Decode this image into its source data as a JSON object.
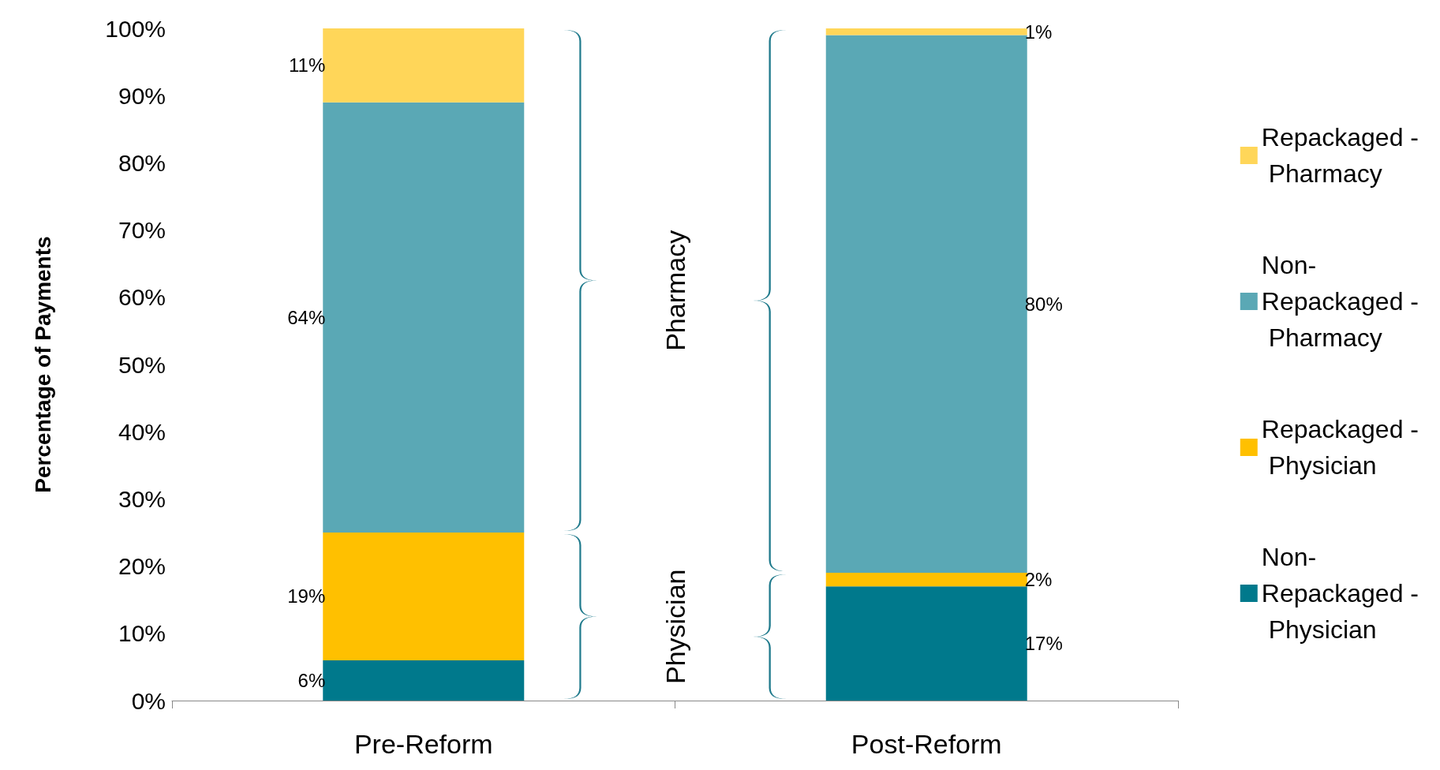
{
  "chart_data": {
    "type": "bar",
    "stacked": true,
    "ylabel": "Percentage of Payments",
    "categories": [
      "Pre-Reform",
      "Post-Reform"
    ],
    "series": [
      {
        "name": "Non-Repackaged - Physician",
        "color": "#00798c",
        "values": [
          6,
          17
        ],
        "value_labels": [
          "6%",
          "17%"
        ]
      },
      {
        "name": "Repackaged - Physician",
        "color": "#ffc000",
        "values": [
          19,
          2
        ],
        "value_labels": [
          "19%",
          "2%"
        ]
      },
      {
        "name": "Non-Repackaged - Pharmacy",
        "color": "#5aa8b5",
        "values": [
          64,
          80
        ],
        "value_labels": [
          "64%",
          "80%"
        ]
      },
      {
        "name": "Repackaged - Pharmacy",
        "color": "#ffd659",
        "values": [
          11,
          1
        ],
        "value_labels": [
          "11%",
          "1%"
        ]
      }
    ],
    "ylim": [
      0,
      100
    ],
    "yticks": [
      {
        "value": 0,
        "label": "0%"
      },
      {
        "value": 10,
        "label": "10%"
      },
      {
        "value": 20,
        "label": "20%"
      },
      {
        "value": 30,
        "label": "30%"
      },
      {
        "value": 40,
        "label": "40%"
      },
      {
        "value": 50,
        "label": "50%"
      },
      {
        "value": 60,
        "label": "60%"
      },
      {
        "value": 70,
        "label": "70%"
      },
      {
        "value": 80,
        "label": "80%"
      },
      {
        "value": 90,
        "label": "90%"
      },
      {
        "value": 100,
        "label": "100%"
      }
    ],
    "annotations": [
      "Physician",
      "Pharmacy"
    ],
    "grid": false,
    "legend": "right"
  }
}
